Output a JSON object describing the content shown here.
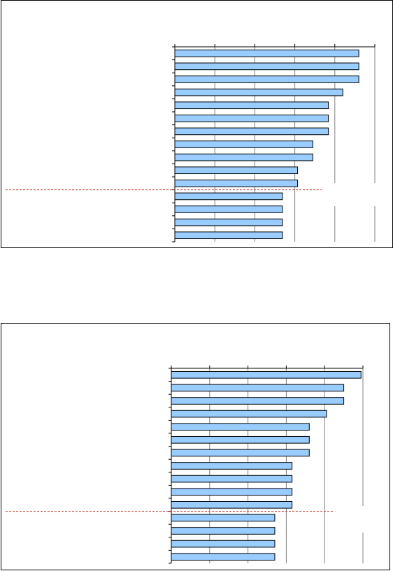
{
  "chart_data": [
    {
      "type": "bar",
      "orientation": "horizontal",
      "categories": [
        "",
        "",
        "",
        "",
        "",
        "",
        "",
        "",
        "",
        "",
        "",
        "",
        "",
        "",
        ""
      ],
      "values": [
        4.6,
        4.6,
        4.6,
        4.2,
        3.84,
        3.84,
        3.84,
        3.45,
        3.45,
        3.07,
        3.07,
        2.69,
        2.69,
        2.69,
        2.69
      ],
      "xlim": [
        0,
        5
      ],
      "grid": true,
      "reference_line": {
        "after_bar": 11,
        "color": "#c0392b",
        "style": "dashed"
      },
      "bar_color": "#99ccff",
      "bar_edge": "#000000"
    },
    {
      "type": "bar",
      "orientation": "horizontal",
      "categories": [
        "",
        "",
        "",
        "",
        "",
        "",
        "",
        "",
        "",
        "",
        "",
        "",
        "",
        "",
        ""
      ],
      "values": [
        4.95,
        4.5,
        4.5,
        4.05,
        3.6,
        3.6,
        3.6,
        3.15,
        3.15,
        3.15,
        3.15,
        2.7,
        2.7,
        2.7,
        2.7
      ],
      "xlim": [
        0,
        5
      ],
      "grid": true,
      "reference_line": {
        "after_bar": 11,
        "color": "#c0392b",
        "style": "dashed"
      },
      "bar_color": "#99ccff",
      "bar_edge": "#000000"
    }
  ]
}
